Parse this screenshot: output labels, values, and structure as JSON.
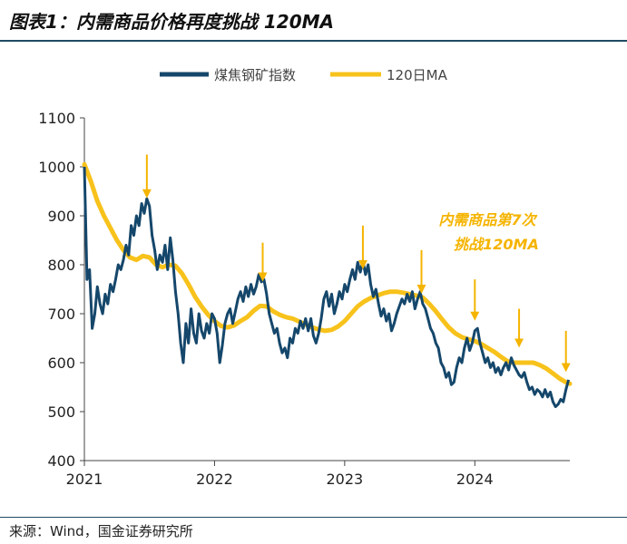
{
  "figure": {
    "title": "图表1：内需商品价格再度挑战 120MA",
    "source": "来源：Wind，国金证券研究所"
  },
  "colors": {
    "index_line": "#15476b",
    "ma_line": "#f7c21b",
    "arrow": "#f5b400",
    "annotation_text": "#f5b400",
    "axis": "#444444",
    "rule": "#1f4a63"
  },
  "chart_data": {
    "type": "line",
    "title": "",
    "xlabel": "",
    "ylabel": "",
    "ylim": [
      400,
      1100
    ],
    "yticks": [
      400,
      500,
      600,
      700,
      800,
      900,
      1000,
      1100
    ],
    "xticks": [
      "2021",
      "2022",
      "2023",
      "2024"
    ],
    "xlim": [
      2021.0,
      2024.73
    ],
    "grid": false,
    "legend_position": "top",
    "series": [
      {
        "name": "煤焦钢矿指数",
        "points": [
          [
            2021.0,
            1000
          ],
          [
            2021.02,
            770
          ],
          [
            2021.04,
            790
          ],
          [
            2021.06,
            670
          ],
          [
            2021.08,
            700
          ],
          [
            2021.1,
            755
          ],
          [
            2021.12,
            720
          ],
          [
            2021.14,
            700
          ],
          [
            2021.16,
            740
          ],
          [
            2021.18,
            720
          ],
          [
            2021.2,
            760
          ],
          [
            2021.22,
            745
          ],
          [
            2021.24,
            770
          ],
          [
            2021.26,
            800
          ],
          [
            2021.28,
            790
          ],
          [
            2021.3,
            810
          ],
          [
            2021.32,
            840
          ],
          [
            2021.34,
            820
          ],
          [
            2021.36,
            880
          ],
          [
            2021.38,
            860
          ],
          [
            2021.4,
            900
          ],
          [
            2021.42,
            880
          ],
          [
            2021.44,
            925
          ],
          [
            2021.46,
            905
          ],
          [
            2021.48,
            935
          ],
          [
            2021.5,
            920
          ],
          [
            2021.52,
            860
          ],
          [
            2021.54,
            830
          ],
          [
            2021.56,
            790
          ],
          [
            2021.58,
            820
          ],
          [
            2021.6,
            805
          ],
          [
            2021.62,
            840
          ],
          [
            2021.64,
            790
          ],
          [
            2021.66,
            855
          ],
          [
            2021.68,
            810
          ],
          [
            2021.7,
            745
          ],
          [
            2021.72,
            700
          ],
          [
            2021.74,
            640
          ],
          [
            2021.76,
            600
          ],
          [
            2021.78,
            680
          ],
          [
            2021.8,
            640
          ],
          [
            2021.82,
            710
          ],
          [
            2021.84,
            660
          ],
          [
            2021.86,
            640
          ],
          [
            2021.88,
            700
          ],
          [
            2021.9,
            665
          ],
          [
            2021.92,
            650
          ],
          [
            2021.94,
            680
          ],
          [
            2021.96,
            660
          ],
          [
            2021.98,
            700
          ],
          [
            2022.0,
            690
          ],
          [
            2022.02,
            660
          ],
          [
            2022.04,
            600
          ],
          [
            2022.06,
            635
          ],
          [
            2022.08,
            680
          ],
          [
            2022.1,
            700
          ],
          [
            2022.12,
            710
          ],
          [
            2022.14,
            680
          ],
          [
            2022.16,
            705
          ],
          [
            2022.18,
            730
          ],
          [
            2022.2,
            745
          ],
          [
            2022.22,
            725
          ],
          [
            2022.24,
            755
          ],
          [
            2022.26,
            735
          ],
          [
            2022.28,
            760
          ],
          [
            2022.3,
            740
          ],
          [
            2022.32,
            755
          ],
          [
            2022.34,
            780
          ],
          [
            2022.36,
            765
          ],
          [
            2022.38,
            770
          ],
          [
            2022.4,
            740
          ],
          [
            2022.42,
            700
          ],
          [
            2022.44,
            680
          ],
          [
            2022.46,
            660
          ],
          [
            2022.48,
            670
          ],
          [
            2022.5,
            640
          ],
          [
            2022.52,
            620
          ],
          [
            2022.54,
            630
          ],
          [
            2022.56,
            610
          ],
          [
            2022.58,
            650
          ],
          [
            2022.6,
            640
          ],
          [
            2022.62,
            670
          ],
          [
            2022.64,
            660
          ],
          [
            2022.66,
            685
          ],
          [
            2022.68,
            670
          ],
          [
            2022.7,
            690
          ],
          [
            2022.72,
            665
          ],
          [
            2022.74,
            690
          ],
          [
            2022.76,
            655
          ],
          [
            2022.78,
            640
          ],
          [
            2022.8,
            660
          ],
          [
            2022.82,
            690
          ],
          [
            2022.84,
            730
          ],
          [
            2022.86,
            745
          ],
          [
            2022.88,
            715
          ],
          [
            2022.9,
            740
          ],
          [
            2022.92,
            700
          ],
          [
            2022.94,
            720
          ],
          [
            2022.96,
            745
          ],
          [
            2022.98,
            730
          ],
          [
            2023.0,
            760
          ],
          [
            2023.02,
            745
          ],
          [
            2023.04,
            770
          ],
          [
            2023.06,
            790
          ],
          [
            2023.08,
            770
          ],
          [
            2023.1,
            805
          ],
          [
            2023.12,
            785
          ],
          [
            2023.14,
            808
          ],
          [
            2023.16,
            780
          ],
          [
            2023.18,
            800
          ],
          [
            2023.2,
            760
          ],
          [
            2023.22,
            735
          ],
          [
            2023.24,
            750
          ],
          [
            2023.26,
            720
          ],
          [
            2023.28,
            695
          ],
          [
            2023.3,
            710
          ],
          [
            2023.32,
            685
          ],
          [
            2023.34,
            700
          ],
          [
            2023.36,
            665
          ],
          [
            2023.38,
            680
          ],
          [
            2023.4,
            700
          ],
          [
            2023.42,
            715
          ],
          [
            2023.44,
            730
          ],
          [
            2023.46,
            720
          ],
          [
            2023.48,
            740
          ],
          [
            2023.5,
            725
          ],
          [
            2023.52,
            745
          ],
          [
            2023.54,
            710
          ],
          [
            2023.56,
            730
          ],
          [
            2023.58,
            745
          ],
          [
            2023.6,
            720
          ],
          [
            2023.62,
            710
          ],
          [
            2023.64,
            690
          ],
          [
            2023.66,
            670
          ],
          [
            2023.68,
            660
          ],
          [
            2023.7,
            640
          ],
          [
            2023.72,
            630
          ],
          [
            2023.74,
            600
          ],
          [
            2023.76,
            590
          ],
          [
            2023.78,
            570
          ],
          [
            2023.8,
            580
          ],
          [
            2023.82,
            555
          ],
          [
            2023.84,
            560
          ],
          [
            2023.86,
            590
          ],
          [
            2023.88,
            610
          ],
          [
            2023.9,
            600
          ],
          [
            2023.92,
            630
          ],
          [
            2023.94,
            650
          ],
          [
            2023.96,
            625
          ],
          [
            2023.98,
            640
          ],
          [
            2024.0,
            665
          ],
          [
            2024.02,
            670
          ],
          [
            2024.04,
            640
          ],
          [
            2024.06,
            620
          ],
          [
            2024.08,
            600
          ],
          [
            2024.1,
            610
          ],
          [
            2024.12,
            590
          ],
          [
            2024.14,
            600
          ],
          [
            2024.16,
            580
          ],
          [
            2024.18,
            590
          ],
          [
            2024.2,
            575
          ],
          [
            2024.22,
            590
          ],
          [
            2024.24,
            600
          ],
          [
            2024.26,
            585
          ],
          [
            2024.28,
            610
          ],
          [
            2024.3,
            595
          ],
          [
            2024.32,
            585
          ],
          [
            2024.34,
            575
          ],
          [
            2024.36,
            570
          ],
          [
            2024.38,
            580
          ],
          [
            2024.4,
            560
          ],
          [
            2024.42,
            545
          ],
          [
            2024.44,
            550
          ],
          [
            2024.46,
            535
          ],
          [
            2024.48,
            545
          ],
          [
            2024.5,
            540
          ],
          [
            2024.52,
            530
          ],
          [
            2024.54,
            545
          ],
          [
            2024.56,
            530
          ],
          [
            2024.58,
            540
          ],
          [
            2024.6,
            520
          ],
          [
            2024.62,
            510
          ],
          [
            2024.64,
            515
          ],
          [
            2024.66,
            525
          ],
          [
            2024.68,
            520
          ],
          [
            2024.7,
            545
          ],
          [
            2024.72,
            565
          ]
        ]
      },
      {
        "name": "120日MA",
        "points": [
          [
            2021.0,
            1005
          ],
          [
            2021.05,
            970
          ],
          [
            2021.1,
            930
          ],
          [
            2021.15,
            900
          ],
          [
            2021.2,
            875
          ],
          [
            2021.25,
            850
          ],
          [
            2021.3,
            830
          ],
          [
            2021.35,
            815
          ],
          [
            2021.4,
            810
          ],
          [
            2021.45,
            818
          ],
          [
            2021.5,
            815
          ],
          [
            2021.55,
            800
          ],
          [
            2021.6,
            795
          ],
          [
            2021.65,
            800
          ],
          [
            2021.7,
            798
          ],
          [
            2021.75,
            782
          ],
          [
            2021.8,
            760
          ],
          [
            2021.85,
            735
          ],
          [
            2021.9,
            715
          ],
          [
            2021.95,
            698
          ],
          [
            2022.0,
            685
          ],
          [
            2022.05,
            675
          ],
          [
            2022.1,
            672
          ],
          [
            2022.15,
            676
          ],
          [
            2022.2,
            685
          ],
          [
            2022.25,
            693
          ],
          [
            2022.3,
            706
          ],
          [
            2022.35,
            716
          ],
          [
            2022.4,
            715
          ],
          [
            2022.45,
            705
          ],
          [
            2022.5,
            698
          ],
          [
            2022.55,
            693
          ],
          [
            2022.6,
            690
          ],
          [
            2022.65,
            684
          ],
          [
            2022.7,
            678
          ],
          [
            2022.75,
            672
          ],
          [
            2022.8,
            668
          ],
          [
            2022.85,
            665
          ],
          [
            2022.9,
            667
          ],
          [
            2022.95,
            674
          ],
          [
            2023.0,
            685
          ],
          [
            2023.05,
            700
          ],
          [
            2023.1,
            715
          ],
          [
            2023.15,
            725
          ],
          [
            2023.2,
            732
          ],
          [
            2023.25,
            737
          ],
          [
            2023.3,
            742
          ],
          [
            2023.35,
            745
          ],
          [
            2023.4,
            745
          ],
          [
            2023.45,
            743
          ],
          [
            2023.5,
            740
          ],
          [
            2023.55,
            737
          ],
          [
            2023.6,
            733
          ],
          [
            2023.65,
            720
          ],
          [
            2023.7,
            705
          ],
          [
            2023.75,
            688
          ],
          [
            2023.8,
            672
          ],
          [
            2023.85,
            660
          ],
          [
            2023.9,
            652
          ],
          [
            2023.95,
            648
          ],
          [
            2024.0,
            644
          ],
          [
            2024.05,
            638
          ],
          [
            2024.1,
            630
          ],
          [
            2024.15,
            622
          ],
          [
            2024.2,
            612
          ],
          [
            2024.25,
            603
          ],
          [
            2024.3,
            600
          ],
          [
            2024.35,
            600
          ],
          [
            2024.4,
            600
          ],
          [
            2024.45,
            600
          ],
          [
            2024.5,
            595
          ],
          [
            2024.55,
            588
          ],
          [
            2024.6,
            578
          ],
          [
            2024.65,
            568
          ],
          [
            2024.7,
            560
          ],
          [
            2024.73,
            557
          ]
        ]
      }
    ],
    "arrows": [
      {
        "x": 2021.48,
        "y_from": 1025,
        "y_to": 945
      },
      {
        "x": 2022.37,
        "y_from": 845,
        "y_to": 775
      },
      {
        "x": 2023.14,
        "y_from": 880,
        "y_to": 800
      },
      {
        "x": 2023.59,
        "y_from": 830,
        "y_to": 750
      },
      {
        "x": 2024.0,
        "y_from": 770,
        "y_to": 695
      },
      {
        "x": 2024.34,
        "y_from": 710,
        "y_to": 640
      },
      {
        "x": 2024.7,
        "y_from": 665,
        "y_to": 590
      }
    ],
    "annotation": {
      "line1": "内需商品第7次",
      "line2": "挑战120MA"
    }
  }
}
